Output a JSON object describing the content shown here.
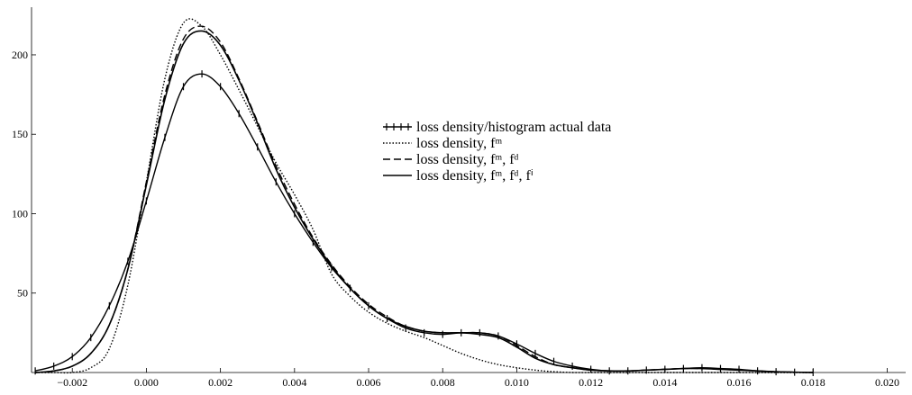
{
  "chart_data": {
    "type": "line",
    "x": [
      -0.003,
      -0.0025,
      -0.002,
      -0.0015,
      -0.001,
      -0.0005,
      0,
      0.0005,
      0.001,
      0.0015,
      0.002,
      0.0025,
      0.003,
      0.0035,
      0.004,
      0.0045,
      0.005,
      0.0055,
      0.006,
      0.0065,
      0.007,
      0.0075,
      0.008,
      0.0085,
      0.009,
      0.0095,
      0.01,
      0.0105,
      0.011,
      0.0115,
      0.012,
      0.0125,
      0.013,
      0.0135,
      0.014,
      0.0145,
      0.015,
      0.0155,
      0.016,
      0.0165,
      0.017,
      0.0175,
      0.018
    ],
    "series": [
      {
        "name": "loss density/histogram actual data",
        "color": "#000000",
        "dash": "solid",
        "marker": "cross",
        "values": [
          1,
          4,
          10,
          22,
          42,
          70,
          108,
          148,
          180,
          188,
          180,
          163,
          142,
          120,
          100,
          82,
          66,
          53,
          42,
          34,
          28,
          25,
          24,
          25,
          25,
          23,
          18,
          12,
          7,
          4,
          2,
          1,
          1,
          1.5,
          2,
          2.5,
          3,
          2.5,
          2,
          1,
          0.5,
          0.2,
          0
        ]
      },
      {
        "name": "loss density, fᵐ",
        "color": "#000000",
        "dash": "dotted",
        "values": [
          0,
          0,
          0,
          3,
          15,
          55,
          120,
          185,
          220,
          218,
          200,
          178,
          155,
          132,
          112,
          90,
          62,
          48,
          38,
          31,
          26,
          22,
          17,
          12,
          8,
          5,
          3,
          1.5,
          0.5,
          0,
          0,
          0,
          0,
          0,
          0,
          0,
          0,
          0,
          0,
          0,
          0,
          0,
          0
        ]
      },
      {
        "name": "loss density, fᵐ, fᵈ",
        "color": "#000000",
        "dash": "dashed",
        "values": [
          0,
          1,
          4,
          12,
          30,
          65,
          120,
          175,
          210,
          218,
          208,
          185,
          158,
          130,
          106,
          85,
          68,
          54,
          43,
          35,
          29,
          26,
          25,
          25,
          25,
          23,
          17,
          10,
          5,
          3,
          1.5,
          1,
          1,
          1.5,
          2,
          2.5,
          2.5,
          2,
          1.5,
          1,
          0.5,
          0.2,
          0
        ]
      },
      {
        "name": "loss density, fᵐ, fᵈ, fⁱ",
        "color": "#000000",
        "dash": "solid",
        "values": [
          0,
          1,
          4,
          12,
          30,
          65,
          118,
          172,
          207,
          215,
          206,
          184,
          157,
          128,
          104,
          84,
          67,
          53,
          42,
          34,
          29,
          26,
          25,
          25,
          24,
          22,
          16,
          9,
          5,
          3,
          1.5,
          1,
          1,
          1.5,
          2,
          2.5,
          2.5,
          2,
          1.5,
          1,
          0.5,
          0.2,
          0
        ]
      }
    ],
    "xlim": [
      -0.0031,
      0.0205
    ],
    "xticks": [
      {
        "value": -0.002,
        "label": "−0.002"
      },
      {
        "value": 0,
        "label": "0.000"
      },
      {
        "value": 0.002,
        "label": "0.002"
      },
      {
        "value": 0.004,
        "label": "0.004"
      },
      {
        "value": 0.006,
        "label": "0.006"
      },
      {
        "value": 0.008,
        "label": "0.008"
      },
      {
        "value": 0.01,
        "label": "0.010"
      },
      {
        "value": 0.012,
        "label": "0.012"
      },
      {
        "value": 0.014,
        "label": "0.014"
      },
      {
        "value": 0.016,
        "label": "0.016"
      },
      {
        "value": 0.018,
        "label": "0.018"
      },
      {
        "value": 0.02,
        "label": "0.020"
      }
    ],
    "ylim": [
      0,
      230
    ],
    "yticks": [
      50,
      100,
      150,
      200
    ],
    "grid": false,
    "legend": "right"
  }
}
